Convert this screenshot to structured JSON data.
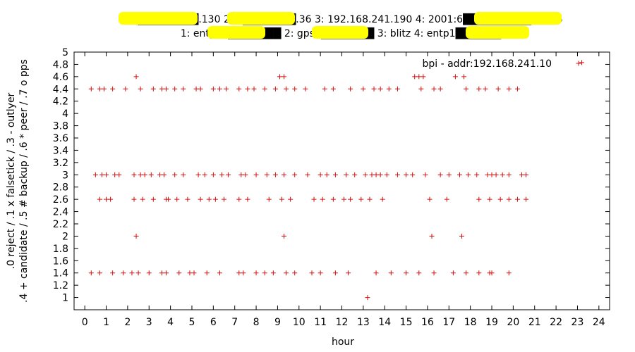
{
  "title": {
    "line1": "1: 1████████.130 2: 1███████.36 3: 192.168.241.190 4: 2001:6█████████.30:35",
    "line2": "1: entp2.i███████ 2: gps0███████ 3: blitz 4: entp1██████"
  },
  "chart_data": {
    "type": "scatter",
    "xlabel": "hour",
    "ylabel_line1": ".0 reject  /  .1 x falsetick  /  .3 - outlyer",
    "ylabel_line2": ".4 + candidate  /  .5 # backup  /  .6 * peer  /  .7 o pps",
    "xlim": [
      -0.5,
      24.5
    ],
    "ylim": [
      0.8,
      5.0
    ],
    "xticks": [
      "0",
      "1",
      "2",
      "3",
      "4",
      "5",
      "6",
      "7",
      "8",
      "9",
      "10",
      "11",
      "12",
      "13",
      "14",
      "15",
      "16",
      "17",
      "18",
      "19",
      "20",
      "21",
      "22",
      "23",
      "24"
    ],
    "yticks": [
      "1",
      "1.2",
      "1.4",
      "1.6",
      "1.8",
      "2",
      "2.2",
      "2.4",
      "2.6",
      "2.8",
      "3",
      "3.2",
      "3.4",
      "3.6",
      "3.8",
      "4",
      "4.2",
      "4.4",
      "4.6",
      "4.8",
      "5"
    ],
    "legend": "top-right",
    "series": [
      {
        "name": "bpi - addr:192.168.241.10",
        "color": "#d01010",
        "points": [
          [
            0.3,
            4.4
          ],
          [
            0.7,
            4.4
          ],
          [
            0.9,
            4.4
          ],
          [
            1.3,
            4.4
          ],
          [
            1.9,
            4.4
          ],
          [
            2.6,
            4.4
          ],
          [
            3.2,
            4.4
          ],
          [
            3.6,
            4.4
          ],
          [
            3.8,
            4.4
          ],
          [
            4.2,
            4.4
          ],
          [
            4.6,
            4.4
          ],
          [
            5.2,
            4.4
          ],
          [
            5.4,
            4.4
          ],
          [
            6.0,
            4.4
          ],
          [
            6.3,
            4.4
          ],
          [
            6.6,
            4.4
          ],
          [
            7.2,
            4.4
          ],
          [
            7.6,
            4.4
          ],
          [
            7.9,
            4.4
          ],
          [
            8.4,
            4.4
          ],
          [
            8.9,
            4.4
          ],
          [
            9.4,
            4.4
          ],
          [
            9.8,
            4.4
          ],
          [
            10.3,
            4.4
          ],
          [
            11.2,
            4.4
          ],
          [
            11.6,
            4.4
          ],
          [
            12.4,
            4.4
          ],
          [
            13.0,
            4.4
          ],
          [
            13.5,
            4.4
          ],
          [
            13.8,
            4.4
          ],
          [
            14.2,
            4.4
          ],
          [
            14.6,
            4.4
          ],
          [
            15.7,
            4.4
          ],
          [
            16.3,
            4.4
          ],
          [
            16.6,
            4.4
          ],
          [
            17.8,
            4.4
          ],
          [
            18.4,
            4.4
          ],
          [
            18.7,
            4.4
          ],
          [
            19.3,
            4.4
          ],
          [
            19.8,
            4.4
          ],
          [
            20.2,
            4.4
          ],
          [
            2.4,
            4.6
          ],
          [
            9.1,
            4.6
          ],
          [
            9.3,
            4.6
          ],
          [
            15.4,
            4.6
          ],
          [
            15.6,
            4.6
          ],
          [
            15.8,
            4.6
          ],
          [
            17.3,
            4.6
          ],
          [
            17.7,
            4.6
          ],
          [
            23.2,
            4.83
          ],
          [
            0.5,
            3.0
          ],
          [
            0.8,
            3.0
          ],
          [
            1.0,
            3.0
          ],
          [
            1.4,
            3.0
          ],
          [
            1.6,
            3.0
          ],
          [
            2.3,
            3.0
          ],
          [
            2.6,
            3.0
          ],
          [
            2.8,
            3.0
          ],
          [
            3.1,
            3.0
          ],
          [
            3.5,
            3.0
          ],
          [
            3.7,
            3.0
          ],
          [
            4.2,
            3.0
          ],
          [
            4.6,
            3.0
          ],
          [
            5.3,
            3.0
          ],
          [
            5.6,
            3.0
          ],
          [
            6.0,
            3.0
          ],
          [
            6.4,
            3.0
          ],
          [
            6.7,
            3.0
          ],
          [
            7.3,
            3.0
          ],
          [
            7.5,
            3.0
          ],
          [
            8.0,
            3.0
          ],
          [
            8.5,
            3.0
          ],
          [
            8.9,
            3.0
          ],
          [
            9.3,
            3.0
          ],
          [
            9.8,
            3.0
          ],
          [
            10.4,
            3.0
          ],
          [
            11.0,
            3.0
          ],
          [
            11.3,
            3.0
          ],
          [
            11.7,
            3.0
          ],
          [
            12.2,
            3.0
          ],
          [
            12.6,
            3.0
          ],
          [
            13.1,
            3.0
          ],
          [
            13.4,
            3.0
          ],
          [
            13.6,
            3.0
          ],
          [
            13.8,
            3.0
          ],
          [
            14.1,
            3.0
          ],
          [
            14.6,
            3.0
          ],
          [
            15.0,
            3.0
          ],
          [
            15.3,
            3.0
          ],
          [
            15.9,
            3.0
          ],
          [
            16.6,
            3.0
          ],
          [
            17.0,
            3.0
          ],
          [
            17.5,
            3.0
          ],
          [
            17.9,
            3.0
          ],
          [
            18.3,
            3.0
          ],
          [
            18.8,
            3.0
          ],
          [
            19.0,
            3.0
          ],
          [
            19.2,
            3.0
          ],
          [
            19.5,
            3.0
          ],
          [
            19.8,
            3.0
          ],
          [
            20.4,
            3.0
          ],
          [
            20.6,
            3.0
          ],
          [
            0.7,
            2.6
          ],
          [
            1.0,
            2.6
          ],
          [
            1.2,
            2.6
          ],
          [
            2.3,
            2.6
          ],
          [
            2.7,
            2.6
          ],
          [
            3.2,
            2.6
          ],
          [
            3.8,
            2.6
          ],
          [
            3.9,
            2.6
          ],
          [
            4.3,
            2.6
          ],
          [
            4.8,
            2.6
          ],
          [
            5.4,
            2.6
          ],
          [
            5.8,
            2.6
          ],
          [
            6.1,
            2.6
          ],
          [
            6.5,
            2.6
          ],
          [
            7.2,
            2.6
          ],
          [
            7.6,
            2.6
          ],
          [
            8.6,
            2.6
          ],
          [
            9.2,
            2.6
          ],
          [
            9.6,
            2.6
          ],
          [
            10.7,
            2.6
          ],
          [
            11.1,
            2.6
          ],
          [
            11.6,
            2.6
          ],
          [
            12.1,
            2.6
          ],
          [
            12.4,
            2.6
          ],
          [
            12.9,
            2.6
          ],
          [
            13.3,
            2.6
          ],
          [
            13.9,
            2.6
          ],
          [
            16.1,
            2.6
          ],
          [
            16.9,
            2.6
          ],
          [
            18.4,
            2.6
          ],
          [
            18.9,
            2.6
          ],
          [
            19.4,
            2.6
          ],
          [
            19.8,
            2.6
          ],
          [
            20.2,
            2.6
          ],
          [
            20.6,
            2.6
          ],
          [
            2.4,
            2.0
          ],
          [
            9.3,
            2.0
          ],
          [
            16.2,
            2.0
          ],
          [
            17.6,
            2.0
          ],
          [
            0.3,
            1.4
          ],
          [
            0.7,
            1.4
          ],
          [
            1.3,
            1.4
          ],
          [
            1.8,
            1.4
          ],
          [
            2.2,
            1.4
          ],
          [
            2.5,
            1.4
          ],
          [
            3.0,
            1.4
          ],
          [
            3.6,
            1.4
          ],
          [
            3.8,
            1.4
          ],
          [
            4.4,
            1.4
          ],
          [
            4.9,
            1.4
          ],
          [
            5.1,
            1.4
          ],
          [
            5.7,
            1.4
          ],
          [
            6.3,
            1.4
          ],
          [
            7.2,
            1.4
          ],
          [
            7.4,
            1.4
          ],
          [
            8.0,
            1.4
          ],
          [
            8.4,
            1.4
          ],
          [
            8.8,
            1.4
          ],
          [
            9.4,
            1.4
          ],
          [
            9.8,
            1.4
          ],
          [
            10.6,
            1.4
          ],
          [
            11.0,
            1.4
          ],
          [
            11.7,
            1.4
          ],
          [
            12.3,
            1.4
          ],
          [
            13.6,
            1.4
          ],
          [
            14.3,
            1.4
          ],
          [
            15.0,
            1.4
          ],
          [
            15.6,
            1.4
          ],
          [
            16.3,
            1.4
          ],
          [
            17.2,
            1.4
          ],
          [
            17.8,
            1.4
          ],
          [
            18.4,
            1.4
          ],
          [
            18.9,
            1.4
          ],
          [
            19.0,
            1.4
          ],
          [
            19.8,
            1.4
          ],
          [
            13.2,
            1.0
          ]
        ]
      }
    ]
  }
}
